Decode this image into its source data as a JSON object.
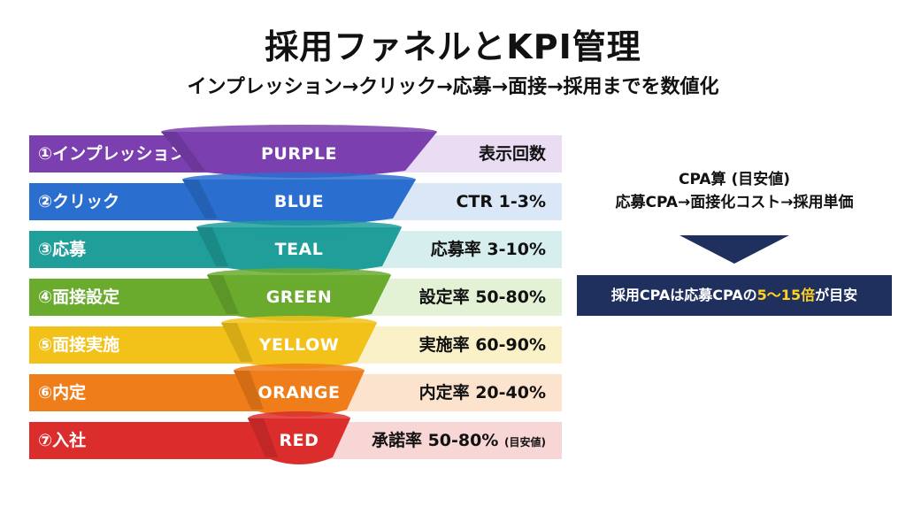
{
  "header": {
    "title": "採用ファネルとKPI管理",
    "subtitle": "インプレッション→クリック→応募→面接→採用までを数値化"
  },
  "funnel": [
    {
      "stage": "①インプレッション",
      "color_name": "PURPLE",
      "metric": "表示回数",
      "metric_note": "",
      "color": "#7b3fb0",
      "light": "#eadcf3"
    },
    {
      "stage": "②クリック",
      "color_name": "BLUE",
      "metric": "CTR 1-3%",
      "metric_note": "",
      "color": "#2a6fcf",
      "light": "#d9e7f7"
    },
    {
      "stage": "③応募",
      "color_name": "TEAL",
      "metric": "応募率 3-10%",
      "metric_note": "",
      "color": "#1f9e9a",
      "light": "#d6efee"
    },
    {
      "stage": "④面接設定",
      "color_name": "GREEN",
      "metric": "設定率 50-80%",
      "metric_note": "",
      "color": "#6aab2e",
      "light": "#e3f1d5"
    },
    {
      "stage": "⑤面接実施",
      "color_name": "YELLOW",
      "metric": "実施率 60-90%",
      "metric_note": "",
      "color": "#f2c21a",
      "light": "#fbf1c8"
    },
    {
      "stage": "⑥内定",
      "color_name": "ORANGE",
      "metric": "内定率 20-40%",
      "metric_note": "",
      "color": "#ef7d1a",
      "light": "#fbe3cd"
    },
    {
      "stage": "⑦入社",
      "color_name": "RED",
      "metric": "承諾率 50-80%",
      "metric_note": "(目安値)",
      "color": "#dc2d2d",
      "light": "#f8d6d6"
    }
  ],
  "cpa": {
    "heading": "CPA算 (目安値)",
    "flow": "応募CPA→面接化コスト→採用単価",
    "box_prefix": "採用CPAは応募CPAの",
    "box_highlight": "5〜15倍",
    "box_suffix": "が目安",
    "box_color": "#1f2f5e",
    "highlight_color": "#ffd21f"
  }
}
